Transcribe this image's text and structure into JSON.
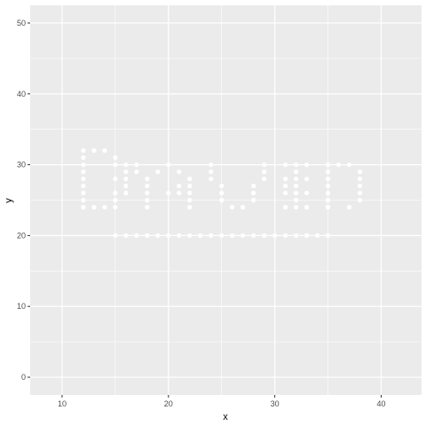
{
  "chart_data": {
    "type": "scatter",
    "xlabel": "x",
    "ylabel": "y",
    "xlim": [
      7.0,
      43.8
    ],
    "ylim": [
      -2.5,
      52.5
    ],
    "x_ticks": [
      10,
      20,
      30,
      40
    ],
    "y_ticks": [
      0,
      10,
      20,
      30,
      40,
      50
    ],
    "x_tick_labels": [
      "10",
      "20",
      "30",
      "40"
    ],
    "y_tick_labels": [
      "0",
      "10",
      "20",
      "30",
      "40",
      "50"
    ],
    "grid": true,
    "background": "#ebebeb",
    "grid_major_color": "#ffffff",
    "point_color": "#ffffff",
    "points": {
      "x": [
        12,
        12,
        12,
        12,
        12,
        12,
        12,
        12,
        12,
        13,
        14,
        13,
        14,
        15,
        15,
        15,
        15,
        15,
        15,
        16,
        16,
        16,
        16,
        16,
        17,
        17,
        18,
        18,
        18,
        18,
        18,
        19,
        20,
        20,
        21,
        21,
        21,
        22,
        22,
        22,
        22,
        22,
        24,
        24,
        24,
        25,
        25,
        25,
        26,
        27,
        28,
        28,
        28,
        29,
        29,
        29,
        31,
        31,
        31,
        31,
        31,
        32,
        32,
        32,
        32,
        32,
        32,
        32,
        33,
        33,
        33,
        33,
        35,
        35,
        35,
        35,
        35,
        35,
        35,
        35,
        35,
        36,
        37,
        37,
        38,
        38,
        38,
        38,
        38,
        15,
        16,
        17,
        18,
        19,
        20,
        21,
        22,
        23,
        24,
        25,
        26,
        27,
        28,
        29,
        30,
        31,
        32,
        33,
        34,
        35
      ],
      "y": [
        32,
        31,
        30,
        29,
        28,
        27,
        26,
        25,
        24,
        32,
        32,
        24,
        24,
        31,
        30,
        28,
        26,
        25,
        24,
        30,
        29,
        28,
        27,
        26,
        30,
        29,
        28,
        27,
        26,
        25,
        24,
        29,
        30,
        26,
        29,
        27,
        26,
        28,
        27,
        26,
        25,
        24,
        30,
        29,
        28,
        27,
        26,
        25,
        24,
        24,
        25,
        26,
        27,
        28,
        29,
        30,
        30,
        28,
        27,
        26,
        24,
        30,
        29,
        28,
        27,
        26,
        25,
        24,
        30,
        28,
        26,
        24,
        30,
        29,
        28,
        27,
        26,
        25,
        24,
        30,
        24,
        30,
        30,
        24,
        29,
        28,
        27,
        26,
        25,
        20,
        20,
        20,
        20,
        20,
        20,
        20,
        20,
        20,
        20,
        20,
        20,
        20,
        20,
        20,
        20,
        20,
        20,
        20,
        20,
        20
      ]
    }
  }
}
